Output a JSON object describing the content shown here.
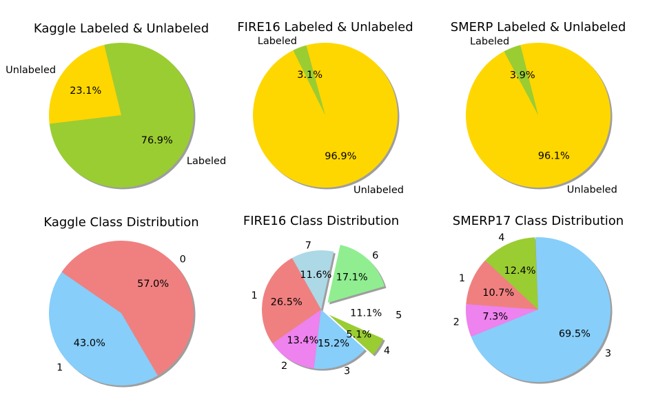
{
  "chart_data": [
    {
      "type": "pie",
      "title": "Kaggle Labeled & Unlabeled",
      "slices": [
        {
          "label": "Labeled",
          "percent": 76.9,
          "color": "#9acd32"
        },
        {
          "label": "Unlabeled",
          "percent": 23.1,
          "color": "#ffd700"
        }
      ]
    },
    {
      "type": "pie",
      "title": "FIRE16 Labeled & Unlabeled",
      "slices": [
        {
          "label": "Labeled",
          "percent": 3.1,
          "color": "#9acd32"
        },
        {
          "label": "Unlabeled",
          "percent": 96.9,
          "color": "#ffd700"
        }
      ]
    },
    {
      "type": "pie",
      "title": "SMERP Labeled & Unlabeled",
      "slices": [
        {
          "label": "Labeled",
          "percent": 3.9,
          "color": "#9acd32"
        },
        {
          "label": "Unlabeled",
          "percent": 96.1,
          "color": "#ffd700"
        }
      ]
    },
    {
      "type": "pie",
      "title": "Kaggle Class Distribution",
      "slices": [
        {
          "label": "1",
          "percent": 43.0,
          "color": "#87cefa"
        },
        {
          "label": "0",
          "percent": 57.0,
          "color": "#f08080"
        }
      ]
    },
    {
      "type": "pie",
      "title": "FIRE16 Class Distribution",
      "slices": [
        {
          "label": "6",
          "percent": 17.1,
          "color": "#90ee90",
          "exploded": true
        },
        {
          "label": "7",
          "percent": 11.6,
          "color": "#add8e6"
        },
        {
          "label": "1",
          "percent": 26.5,
          "color": "#f08080"
        },
        {
          "label": "2",
          "percent": 13.4,
          "color": "#ee82ee"
        },
        {
          "label": "3",
          "percent": 15.2,
          "color": "#87cefa"
        },
        {
          "label": "4",
          "percent": 5.1,
          "color": "#9acd32",
          "exploded": true
        },
        {
          "label": "5",
          "percent": 11.1,
          "color": "#ffffff",
          "exploded": true
        }
      ]
    },
    {
      "type": "pie",
      "title": "SMERP17 Class Distribution",
      "slices": [
        {
          "label": "4",
          "percent": 12.4,
          "color": "#9acd32"
        },
        {
          "label": "1",
          "percent": 10.7,
          "color": "#f08080"
        },
        {
          "label": "2",
          "percent": 7.3,
          "color": "#ee82ee"
        },
        {
          "label": "3",
          "percent": 69.5,
          "color": "#87cefa"
        }
      ]
    }
  ]
}
